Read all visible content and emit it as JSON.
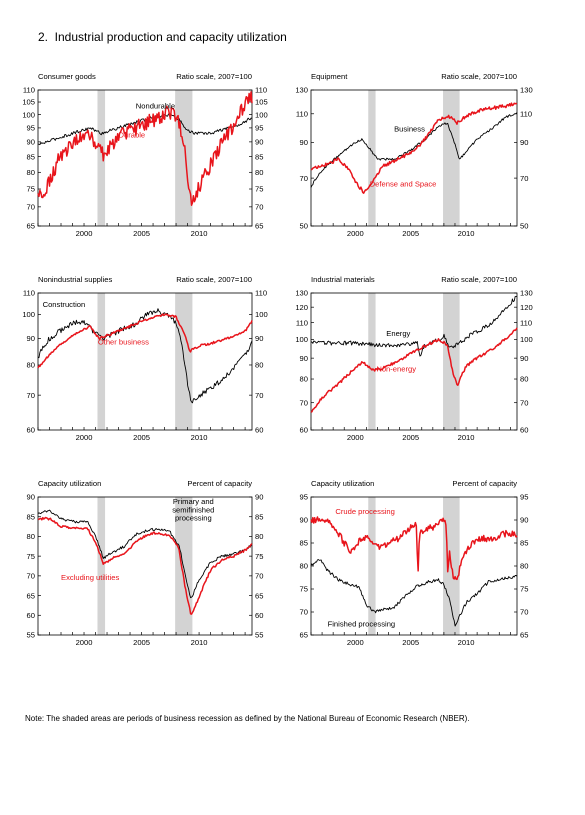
{
  "figure_title": "2.  Industrial production and capacity utilization",
  "note": "Note: The shaded areas are periods of business recession as defined by the National Bureau of Economic Research (NBER).",
  "colors": {
    "black": "#000000",
    "red": "#e8141b",
    "recession": "#d3d3d3"
  },
  "chart_data": [
    {
      "type": "line",
      "title": "Consumer goods",
      "scale_label": "Ratio scale, 2007=100",
      "log_scale": true,
      "xlim": [
        1996.0,
        2014.6
      ],
      "ylim": [
        65,
        110
      ],
      "yticks": [
        65,
        70,
        75,
        80,
        85,
        90,
        95,
        100,
        105,
        110
      ],
      "xticks": [
        2000,
        2005,
        2010
      ],
      "recessions": [
        [
          2001.17,
          2001.83
        ],
        [
          2007.92,
          2009.42
        ]
      ],
      "annotations": [
        {
          "text": "Nondurable",
          "series": 0,
          "x": 2004.5,
          "y": 102.5,
          "anchor": "start"
        },
        {
          "text": "Durable",
          "series": 1,
          "x": 2003.0,
          "y": 91.5,
          "anchor": "start"
        }
      ],
      "series": [
        {
          "name": "Nondurable",
          "color": "#000000",
          "noise": 0.006,
          "x": [
            1996.0,
            1997.5,
            1999.0,
            2000.5,
            2001.5,
            2003.0,
            2004.5,
            2006.0,
            2007.5,
            2008.3,
            2009.0,
            2009.7,
            2011.0,
            2012.5,
            2013.5,
            2014.6
          ],
          "y": [
            89,
            91,
            93,
            95,
            93,
            95,
            97,
            99,
            100,
            98,
            94,
            93,
            93,
            95,
            96,
            99
          ]
        },
        {
          "name": "Durable",
          "color": "#e8141b",
          "noise": 0.03,
          "x": [
            1996.0,
            1996.6,
            1997.3,
            1998.0,
            1999.0,
            2000.3,
            2001.0,
            2001.8,
            2002.5,
            2003.5,
            2004.5,
            2005.5,
            2006.5,
            2007.5,
            2008.2,
            2008.8,
            2009.1,
            2009.4,
            2010.3,
            2011.0,
            2012.0,
            2013.0,
            2013.8,
            2014.2,
            2014.6
          ],
          "y": [
            73,
            75,
            80,
            86,
            89,
            94,
            88,
            85,
            90,
            93,
            95,
            97,
            99,
            101,
            98,
            88,
            74,
            70,
            78,
            82,
            90,
            96,
            102,
            105,
            107
          ]
        }
      ]
    },
    {
      "type": "line",
      "title": "Equipment",
      "scale_label": "Ratio scale, 2007=100",
      "log_scale": true,
      "xlim": [
        1996.0,
        2014.6
      ],
      "ylim": [
        50,
        130
      ],
      "yticks": [
        50,
        70,
        90,
        110,
        130
      ],
      "xticks": [
        2000,
        2005,
        2010
      ],
      "recessions": [
        [
          2001.17,
          2001.83
        ],
        [
          2007.92,
          2009.42
        ]
      ],
      "annotations": [
        {
          "text": "Business",
          "series": 0,
          "x": 2003.5,
          "y": 97,
          "anchor": "start"
        },
        {
          "text": "Defense and Space",
          "series": 1,
          "x": 2001.3,
          "y": 66,
          "anchor": "start"
        }
      ],
      "series": [
        {
          "name": "Business",
          "color": "#000000",
          "noise": 0.008,
          "x": [
            1996.0,
            1997.0,
            1998.5,
            2000.0,
            2000.6,
            2001.3,
            2002.0,
            2003.5,
            2005.0,
            2006.5,
            2007.5,
            2008.3,
            2008.8,
            2009.4,
            2010.0,
            2011.0,
            2012.5,
            2013.5,
            2014.6
          ],
          "y": [
            66,
            74,
            82,
            90,
            92,
            86,
            80,
            80,
            85,
            93,
            101,
            103,
            93,
            80,
            84,
            92,
            100,
            107,
            111
          ]
        },
        {
          "name": "Defense and Space",
          "color": "#e8141b",
          "noise": 0.012,
          "x": [
            1996.0,
            1997.0,
            1998.5,
            1999.3,
            2000.2,
            2000.8,
            2001.5,
            2002.5,
            2003.5,
            2004.5,
            2005.5,
            2006.5,
            2007.5,
            2008.5,
            2009.2,
            2010.0,
            2011.0,
            2012.0,
            2013.5,
            2014.6
          ],
          "y": [
            75,
            76,
            80,
            75,
            67,
            63,
            68,
            76,
            79,
            82,
            86,
            94,
            105,
            108,
            103,
            108,
            112,
            114,
            116,
            118
          ]
        }
      ]
    },
    {
      "type": "line",
      "title": "Nonindustrial supplies",
      "scale_label": "Ratio scale, 2007=100",
      "log_scale": true,
      "xlim": [
        1996.0,
        2014.6
      ],
      "ylim": [
        60,
        110
      ],
      "yticks": [
        60,
        70,
        80,
        90,
        100,
        110
      ],
      "xticks": [
        2000,
        2005,
        2010
      ],
      "recessions": [
        [
          2001.17,
          2001.83
        ],
        [
          2007.92,
          2009.42
        ]
      ],
      "annotations": [
        {
          "text": "Construction",
          "series": 0,
          "x": 1996.4,
          "y": 103.5,
          "anchor": "start"
        },
        {
          "text": "Other business",
          "series": 1,
          "x": 2001.2,
          "y": 87.5,
          "anchor": "start"
        }
      ],
      "series": [
        {
          "name": "Construction",
          "color": "#000000",
          "noise": 0.012,
          "x": [
            1996.0,
            1997.0,
            1998.5,
            1999.5,
            2000.2,
            2001.0,
            2001.8,
            2003.0,
            2004.5,
            2005.5,
            2006.3,
            2007.0,
            2007.8,
            2008.4,
            2008.9,
            2009.3,
            2010.0,
            2011.0,
            2012.0,
            2013.0,
            2014.0,
            2014.6
          ],
          "y": [
            83,
            90,
            95,
            97,
            96,
            92,
            90,
            93,
            96,
            100,
            102,
            100,
            98,
            90,
            76,
            68,
            70,
            72,
            75,
            79,
            84,
            88
          ]
        },
        {
          "name": "Other business",
          "color": "#e8141b",
          "noise": 0.005,
          "x": [
            1996.0,
            1997.5,
            1999.0,
            2000.5,
            2001.3,
            2002.5,
            2004.0,
            2005.5,
            2007.0,
            2008.0,
            2008.7,
            2009.2,
            2010.0,
            2011.0,
            2012.5,
            2014.0,
            2014.6
          ],
          "y": [
            79,
            86,
            91,
            95,
            90,
            92,
            95,
            98,
            100,
            99,
            92,
            85,
            87,
            88,
            90,
            93,
            97
          ]
        }
      ]
    },
    {
      "type": "line",
      "title": "Industrial materials",
      "scale_label": "Ratio scale, 2007=100",
      "log_scale": true,
      "xlim": [
        1996.0,
        2014.6
      ],
      "ylim": [
        60,
        130
      ],
      "yticks": [
        60,
        70,
        80,
        90,
        100,
        110,
        120,
        130
      ],
      "xticks": [
        2000,
        2005,
        2010
      ],
      "recessions": [
        [
          2001.17,
          2001.83
        ],
        [
          2007.92,
          2009.42
        ]
      ],
      "annotations": [
        {
          "text": "Energy",
          "series": 0,
          "x": 2002.8,
          "y": 102,
          "anchor": "start"
        },
        {
          "text": "Non-energy",
          "series": 1,
          "x": 2001.9,
          "y": 83.5,
          "anchor": "start"
        }
      ],
      "series": [
        {
          "name": "Energy",
          "color": "#000000",
          "noise": 0.012,
          "x": [
            1996.0,
            1998.0,
            2000.0,
            2002.0,
            2004.0,
            2005.6,
            2005.8,
            2006.2,
            2007.5,
            2008.0,
            2008.6,
            2009.2,
            2010.5,
            2012.0,
            2013.5,
            2014.6
          ],
          "y": [
            98,
            98,
            98,
            97,
            97,
            98,
            91,
            96,
            100,
            102,
            95,
            97,
            103,
            108,
            118,
            128
          ]
        },
        {
          "name": "Non-energy",
          "color": "#e8141b",
          "noise": 0.008,
          "x": [
            1996.0,
            1997.0,
            1998.5,
            2000.0,
            2000.7,
            2001.5,
            2002.5,
            2004.0,
            2005.5,
            2006.5,
            2007.5,
            2008.3,
            2008.8,
            2009.2,
            2010.0,
            2011.0,
            2012.5,
            2013.5,
            2014.6
          ],
          "y": [
            66,
            72,
            78,
            85,
            88,
            84,
            85,
            89,
            94,
            97,
            100,
            97,
            83,
            77,
            86,
            90,
            95,
            100,
            107
          ]
        }
      ]
    },
    {
      "type": "line",
      "title": "Capacity utilization",
      "scale_label": "Percent of capacity",
      "log_scale": false,
      "xlim": [
        1996.0,
        2014.6
      ],
      "ylim": [
        55,
        90
      ],
      "yticks": [
        55,
        60,
        65,
        70,
        75,
        80,
        85,
        90
      ],
      "xticks": [
        2000,
        2005,
        2010
      ],
      "recessions": [
        [
          2001.17,
          2001.83
        ],
        [
          2007.92,
          2009.42
        ]
      ],
      "annotations": [
        {
          "text": "Primary and",
          "series": 0,
          "x": 2009.5,
          "y": 88.2,
          "anchor": "middle"
        },
        {
          "text": "semifinished",
          "series": 0,
          "x": 2009.5,
          "y": 86.1,
          "anchor": "middle"
        },
        {
          "text": "processing",
          "series": 0,
          "x": 2009.5,
          "y": 84.0,
          "anchor": "middle"
        },
        {
          "text": "Excluding utilities",
          "series": 1,
          "x": 1998.0,
          "y": 69.0,
          "anchor": "start"
        }
      ],
      "series": [
        {
          "name": "Primary and semifinished processing",
          "color": "#000000",
          "noise": 0.35,
          "x": [
            1996.0,
            1997.0,
            1998.0,
            1999.5,
            2000.3,
            2001.0,
            2001.7,
            2002.5,
            2003.5,
            2004.5,
            2005.5,
            2006.5,
            2007.5,
            2008.3,
            2008.8,
            2009.3,
            2010.0,
            2011.0,
            2012.0,
            2013.0,
            2014.0,
            2014.6
          ],
          "y": [
            86,
            86.5,
            84.5,
            83.5,
            84,
            80,
            74.5,
            76,
            77.5,
            80.5,
            81.5,
            82,
            81,
            77.5,
            70,
            64,
            69,
            73.5,
            75,
            75.5,
            76.5,
            78
          ]
        },
        {
          "name": "Excluding utilities",
          "color": "#e8141b",
          "noise": 0.3,
          "x": [
            1996.0,
            1997.0,
            1998.0,
            1999.5,
            2000.3,
            2001.0,
            2001.7,
            2002.5,
            2003.5,
            2004.5,
            2005.5,
            2006.5,
            2007.5,
            2008.2,
            2008.8,
            2009.3,
            2009.9,
            2011.0,
            2012.0,
            2013.0,
            2014.0,
            2014.6
          ],
          "y": [
            84.5,
            84.5,
            82.5,
            82,
            82,
            78.5,
            73,
            74.5,
            75.5,
            78.5,
            80.5,
            81,
            80,
            77.5,
            67,
            60,
            64,
            71.5,
            74,
            75,
            76.5,
            78
          ]
        }
      ]
    },
    {
      "type": "line",
      "title": "Capacity utilization",
      "scale_label": "Percent of capacity",
      "log_scale": false,
      "xlim": [
        1996.0,
        2014.6
      ],
      "ylim": [
        65,
        95
      ],
      "yticks": [
        65,
        70,
        75,
        80,
        85,
        90,
        95
      ],
      "xticks": [
        2000,
        2005,
        2010
      ],
      "recessions": [
        [
          2001.17,
          2001.83
        ],
        [
          2007.92,
          2009.42
        ]
      ],
      "annotations": [
        {
          "text": "Crude processing",
          "series": 0,
          "x": 1998.2,
          "y": 91.3,
          "anchor": "start"
        },
        {
          "text": "Finished processing",
          "series": 1,
          "x": 1997.5,
          "y": 66.8,
          "anchor": "start"
        }
      ],
      "series": [
        {
          "name": "Crude processing",
          "color": "#e8141b",
          "noise": 0.7,
          "x": [
            1996.0,
            1997.0,
            1998.0,
            1999.0,
            1999.7,
            2000.5,
            2001.2,
            2002.0,
            2003.0,
            2004.0,
            2004.8,
            2005.5,
            2005.65,
            2005.8,
            2006.5,
            2007.5,
            2008.0,
            2008.2,
            2008.35,
            2008.5,
            2008.8,
            2009.2,
            2009.6,
            2010.5,
            2011.5,
            2012.5,
            2013.5,
            2014.6
          ],
          "y": [
            90,
            90,
            89,
            85,
            83,
            86,
            86,
            84,
            85,
            86,
            88,
            89,
            78,
            87,
            88,
            89,
            90,
            89,
            78,
            83,
            78,
            77,
            81,
            85,
            86,
            86,
            87,
            87
          ]
        },
        {
          "name": "Finished processing",
          "color": "#000000",
          "noise": 0.35,
          "x": [
            1996.0,
            1996.8,
            1997.5,
            1998.5,
            1999.5,
            2000.3,
            2001.0,
            2001.8,
            2002.5,
            2003.5,
            2004.5,
            2005.5,
            2006.5,
            2007.5,
            2008.0,
            2008.6,
            2009.0,
            2009.4,
            2010.0,
            2011.0,
            2012.0,
            2013.0,
            2014.0,
            2014.6
          ],
          "y": [
            80,
            81.5,
            79,
            77,
            76,
            75.5,
            71.5,
            70,
            70.5,
            71,
            73.5,
            75.5,
            76.5,
            77,
            76,
            72,
            67,
            69,
            72,
            74,
            76.5,
            77,
            77.5,
            78
          ]
        }
      ]
    }
  ]
}
